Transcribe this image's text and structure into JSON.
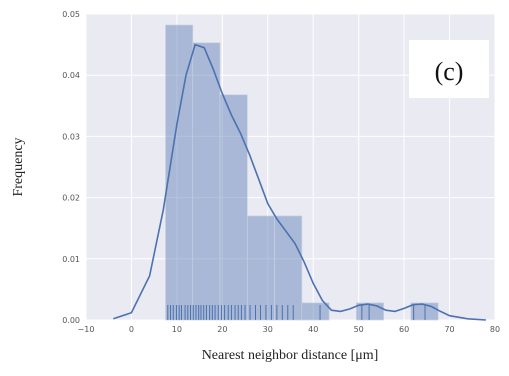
{
  "chart_data": {
    "type": "bar",
    "subtype": "histogram-with-kde-and-rug",
    "panel_label": "(c)",
    "xlabel": "Nearest neighbor distance [μm]",
    "ylabel": "Frequency",
    "xlim": [
      -10,
      80
    ],
    "ylim": [
      0,
      0.05
    ],
    "x_ticks": [
      -10,
      0,
      10,
      20,
      30,
      40,
      50,
      60,
      70,
      80
    ],
    "y_ticks": [
      0.0,
      0.01,
      0.02,
      0.03,
      0.04,
      0.05
    ],
    "x_tick_labels": [
      "−10",
      "0",
      "10",
      "20",
      "30",
      "40",
      "50",
      "60",
      "70",
      "80"
    ],
    "y_tick_labels": [
      "0.00",
      "0.01",
      "0.02",
      "0.03",
      "0.04",
      "0.05"
    ],
    "grid": true,
    "background_color": "#eaeaf2",
    "bar_color": "#4c72b0",
    "bins": [
      {
        "x0": 7.5,
        "x1": 13.5,
        "value": 0.0482
      },
      {
        "x0": 13.5,
        "x1": 19.5,
        "value": 0.0453
      },
      {
        "x0": 19.5,
        "x1": 25.5,
        "value": 0.0368
      },
      {
        "x0": 25.5,
        "x1": 31.5,
        "value": 0.017
      },
      {
        "x0": 31.5,
        "x1": 37.5,
        "value": 0.017
      },
      {
        "x0": 37.5,
        "x1": 43.5,
        "value": 0.0028
      },
      {
        "x0": 43.5,
        "x1": 49.5,
        "value": 0.0
      },
      {
        "x0": 49.5,
        "x1": 55.5,
        "value": 0.0028
      },
      {
        "x0": 55.5,
        "x1": 61.5,
        "value": 0.0
      },
      {
        "x0": 61.5,
        "x1": 67.5,
        "value": 0.0028
      }
    ],
    "kde": {
      "x": [
        -4,
        0,
        4,
        7,
        10,
        12,
        14,
        16,
        18,
        20,
        22,
        24,
        26,
        28,
        30,
        32,
        34,
        36,
        38,
        40,
        42,
        44,
        46,
        48,
        50,
        52,
        54,
        56,
        58,
        60,
        62,
        64,
        66,
        68,
        70,
        74,
        78
      ],
      "y": [
        0.0002,
        0.0012,
        0.0072,
        0.018,
        0.032,
        0.04,
        0.045,
        0.0445,
        0.041,
        0.037,
        0.0335,
        0.0305,
        0.027,
        0.023,
        0.019,
        0.0165,
        0.0145,
        0.0125,
        0.0095,
        0.006,
        0.0032,
        0.0016,
        0.0014,
        0.0018,
        0.0024,
        0.0026,
        0.0023,
        0.0016,
        0.0014,
        0.0019,
        0.0025,
        0.0026,
        0.0022,
        0.0014,
        0.0007,
        0.0002,
        0.0
      ]
    },
    "rug": [
      8.0,
      8.6,
      9.2,
      9.9,
      10.5,
      11.0,
      11.8,
      12.4,
      13.0,
      13.6,
      14.2,
      14.8,
      15.3,
      15.9,
      16.5,
      17.2,
      17.8,
      18.4,
      19.1,
      19.8,
      20.5,
      21.3,
      22.0,
      22.8,
      23.5,
      24.2,
      25.0,
      26.1,
      27.3,
      28.4,
      29.6,
      30.8,
      32.0,
      33.2,
      34.4,
      35.6,
      41.5,
      50.7,
      52.3,
      62.1,
      64.6
    ]
  }
}
